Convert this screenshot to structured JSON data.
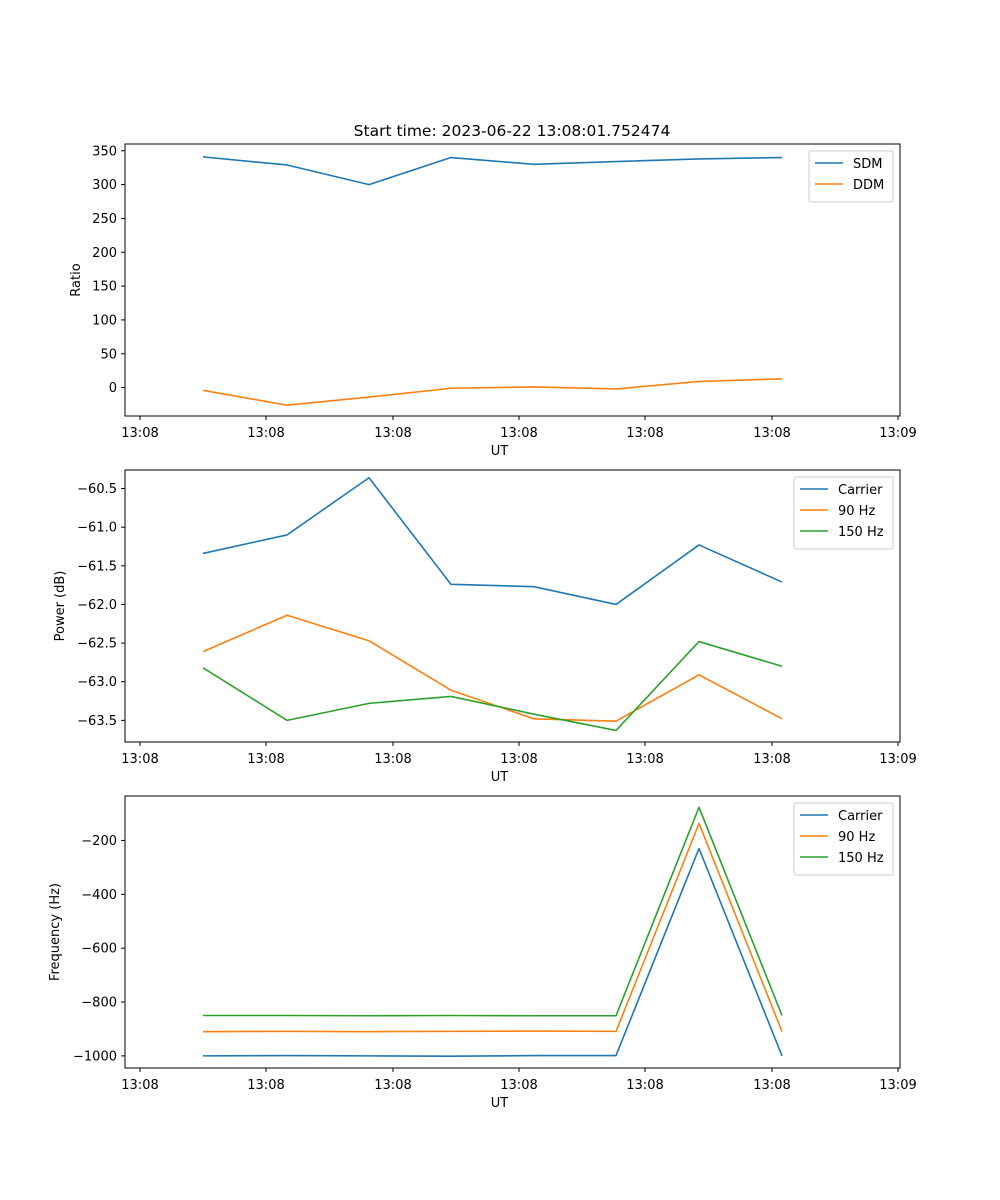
{
  "figure": {
    "title": "Start time: 2023-06-22 13:08:01.752474"
  },
  "colors": {
    "blue": "#1f77b4",
    "orange": "#ff7f0e",
    "green": "#2ca02c"
  },
  "chart_data": [
    {
      "type": "line",
      "title": "Start time: 2023-06-22 13:08:01.752474",
      "xlabel": "UT",
      "ylabel": "Ratio",
      "x_ticks": [
        "13:08",
        "13:08",
        "13:08",
        "13:08",
        "13:08",
        "13:08",
        "13:09"
      ],
      "y_ticks": [
        "0",
        "50",
        "100",
        "150",
        "200",
        "250",
        "300",
        "350"
      ],
      "y_tick_values": [
        0,
        50,
        100,
        150,
        200,
        250,
        300,
        350
      ],
      "ylim": [
        -42,
        360
      ],
      "legend": "top-right",
      "grid": false,
      "series": [
        {
          "name": "SDM",
          "color": "#1f77b4",
          "values": [
            341,
            329,
            300,
            340,
            330,
            334,
            338,
            340
          ]
        },
        {
          "name": "DDM",
          "color": "#ff7f0e",
          "values": [
            -4,
            -26,
            -14,
            -1,
            1,
            -2,
            9,
            13
          ]
        }
      ]
    },
    {
      "type": "line",
      "xlabel": "UT",
      "ylabel": "Power (dB)",
      "x_ticks": [
        "13:08",
        "13:08",
        "13:08",
        "13:08",
        "13:08",
        "13:08",
        "13:09"
      ],
      "y_ticks": [
        "−63.5",
        "−63.0",
        "−62.5",
        "−62.0",
        "−61.5",
        "−61.0",
        "−60.5"
      ],
      "y_tick_values": [
        -63.5,
        -63.0,
        -62.5,
        -62.0,
        -61.5,
        -61.0,
        -60.5
      ],
      "ylim": [
        -63.78,
        -60.26
      ],
      "legend": "top-right",
      "grid": false,
      "series": [
        {
          "name": "Carrier",
          "color": "#1f77b4",
          "values": [
            -61.34,
            -61.1,
            -60.36,
            -61.74,
            -61.77,
            -62.0,
            -61.23,
            -61.71
          ]
        },
        {
          "name": "90 Hz",
          "color": "#ff7f0e",
          "values": [
            -62.61,
            -62.14,
            -62.47,
            -63.11,
            -63.48,
            -63.51,
            -62.91,
            -63.48
          ]
        },
        {
          "name": "150 Hz",
          "color": "#2ca02c",
          "values": [
            -62.82,
            -63.5,
            -63.28,
            -63.19,
            -63.42,
            -63.63,
            -62.48,
            -62.8
          ]
        }
      ]
    },
    {
      "type": "line",
      "xlabel": "UT",
      "ylabel": "Frequency (Hz)",
      "x_ticks": [
        "13:08",
        "13:08",
        "13:08",
        "13:08",
        "13:08",
        "13:08",
        "13:09"
      ],
      "y_ticks": [
        "−1000",
        "−800",
        "−600",
        "−400",
        "−200"
      ],
      "y_tick_values": [
        -1000,
        -800,
        -600,
        -400,
        -200
      ],
      "ylim": [
        -1045,
        -35
      ],
      "legend": "top-right",
      "grid": false,
      "series": [
        {
          "name": "Carrier",
          "color": "#1f77b4",
          "values": [
            -1000,
            -999,
            -1000,
            -1001,
            -999,
            -999,
            -230,
            -1000
          ]
        },
        {
          "name": "90 Hz",
          "color": "#ff7f0e",
          "values": [
            -910,
            -909,
            -910,
            -909,
            -908,
            -909,
            -137,
            -910
          ]
        },
        {
          "name": "150 Hz",
          "color": "#2ca02c",
          "values": [
            -850,
            -850,
            -851,
            -850,
            -851,
            -851,
            -77,
            -850
          ]
        }
      ]
    }
  ]
}
